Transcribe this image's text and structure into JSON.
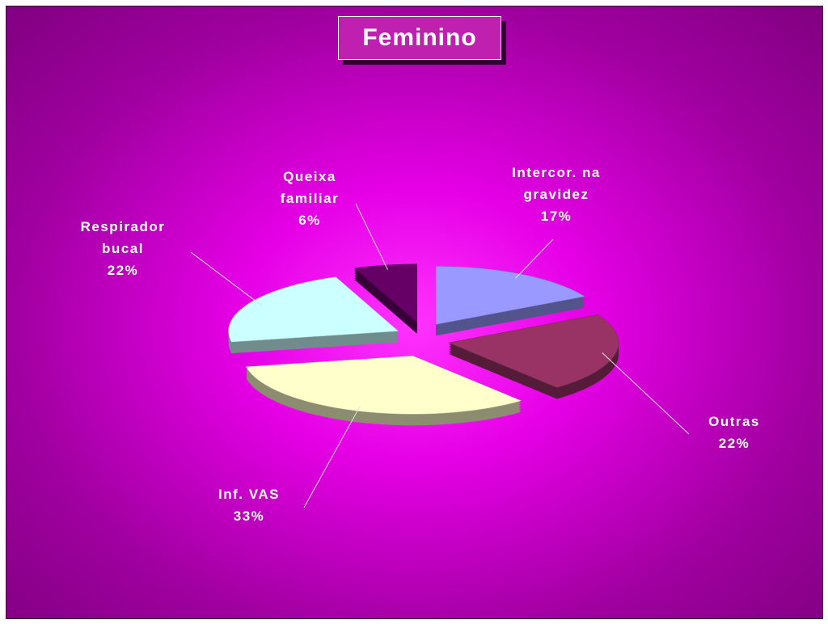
{
  "chart_data": {
    "type": "pie",
    "title": "Feminino",
    "categories": [
      "Intercor. na gravidez",
      "Outras",
      "Inf. VAS",
      "Respirador bucal",
      "Queixa familiar"
    ],
    "values": [
      17,
      22,
      33,
      22,
      6
    ],
    "value_labels": [
      "17%",
      "22%",
      "33%",
      "22%",
      "6%"
    ],
    "colors": [
      "#9999ff",
      "#993366",
      "#ffffcc",
      "#ccffff",
      "#660066"
    ]
  }
}
